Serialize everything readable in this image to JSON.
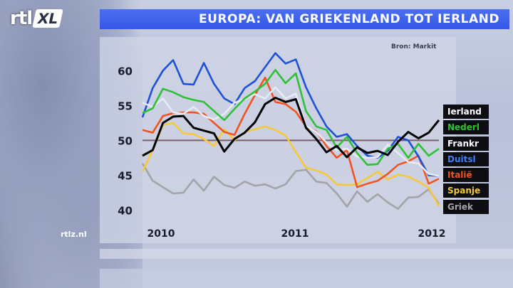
{
  "title": "EUROPA: VAN GRIEKENLAND TOT IERLAND",
  "source": "Bron: Markit",
  "logo": {
    "rtl": "rtl",
    "xl": "XL"
  },
  "website": "rtlz.nl",
  "colors": {
    "title_bar": "#3a5ce8",
    "reference_line": "#7a5f6a"
  },
  "chart_data": {
    "type": "line",
    "ylim": [
      37,
      64
    ],
    "yticks": [
      40,
      45,
      50,
      55,
      60
    ],
    "xticks": [
      "2010",
      "2011",
      "2012"
    ],
    "reference_value": 50,
    "title": "",
    "xlabel": "",
    "ylabel": "",
    "series": [
      {
        "name": "Ierland",
        "color": "#000000",
        "label_color": "#ffffff",
        "values": [
          47.8,
          48.6,
          52.5,
          53.4,
          53.5,
          51.8,
          51.4,
          51.0,
          48.4,
          50.2,
          51.1,
          52.6,
          55.2,
          56.1,
          55.5,
          55.9,
          51.8,
          50.2,
          48.3,
          49.2,
          47.6,
          49.0,
          48.2,
          48.5,
          47.9,
          49.8,
          51.2,
          50.3,
          51.1,
          52.9
        ]
      },
      {
        "name": "Nederl",
        "color": "#2ec135",
        "label_color": "#2ec135",
        "values": [
          53.9,
          54.6,
          57.4,
          56.9,
          56.2,
          55.8,
          55.5,
          54.2,
          52.9,
          54.5,
          56.0,
          57.0,
          58.1,
          60.1,
          58.2,
          59.6,
          54.2,
          52.0,
          51.5,
          49.0,
          50.5,
          48.2,
          46.5,
          46.6,
          48.8,
          49.5,
          47.5,
          49.5,
          47.8,
          48.8
        ]
      },
      {
        "name": "Frankr",
        "color": "#e6ebf5",
        "label_color": "#ffffff",
        "values": [
          55.4,
          54.8,
          56.0,
          54.0,
          53.8,
          54.8,
          53.5,
          53.0,
          53.8,
          55.4,
          55.9,
          56.6,
          56.0,
          57.6,
          56.0,
          56.7,
          52.1,
          51.2,
          49.7,
          48.6,
          48.8,
          47.7,
          47.5,
          47.6,
          49.4,
          48.2,
          46.9,
          46.7,
          45.2,
          44.9
        ]
      },
      {
        "name": "Duitsl",
        "color": "#1e52d6",
        "label_color": "#3f7cff",
        "values": [
          53.3,
          57.5,
          60.0,
          61.5,
          58.1,
          58.0,
          61.1,
          58.1,
          56.0,
          55.2,
          57.5,
          58.5,
          60.5,
          62.5,
          61.0,
          61.6,
          57.6,
          54.6,
          52.0,
          50.5,
          50.9,
          49.2,
          47.8,
          47.5,
          48.5,
          50.5,
          50.0,
          47.7,
          45.0,
          44.9
        ]
      },
      {
        "name": "Italië",
        "color": "#f05422",
        "label_color": "#f05422",
        "values": [
          51.5,
          51.1,
          53.5,
          53.9,
          54.0,
          54.0,
          53.8,
          52.5,
          51.2,
          50.8,
          53.8,
          56.5,
          59.0,
          55.5,
          55.2,
          54.1,
          52.0,
          51.3,
          49.2,
          47.5,
          48.6,
          43.3,
          43.8,
          44.2,
          45.2,
          46.5,
          47.0,
          47.8,
          43.8,
          44.5
        ]
      },
      {
        "name": "Spanje",
        "color": "#f5c93a",
        "label_color": "#f5c93a",
        "values": [
          45.5,
          48.6,
          52.2,
          52.5,
          51.0,
          50.9,
          50.2,
          49.2,
          51.6,
          50.0,
          51.2,
          51.6,
          52.0,
          51.5,
          50.7,
          48.3,
          46.1,
          45.7,
          45.1,
          43.7,
          43.6,
          43.7,
          44.6,
          45.5,
          44.4,
          45.1,
          44.8,
          44.1,
          43.2,
          40.6
        ]
      },
      {
        "name": "Griek",
        "color": "#a4a4a8",
        "label_color": "#a4a4a8",
        "values": [
          46.7,
          44.2,
          43.3,
          42.4,
          42.5,
          44.4,
          42.8,
          44.8,
          43.6,
          43.2,
          44.1,
          43.5,
          43.7,
          43.1,
          43.7,
          45.6,
          45.8,
          44.1,
          43.9,
          42.4,
          40.5,
          42.7,
          41.2,
          42.3,
          41.1,
          40.2,
          41.8,
          41.9,
          43.0,
          40.9
        ]
      }
    ]
  }
}
